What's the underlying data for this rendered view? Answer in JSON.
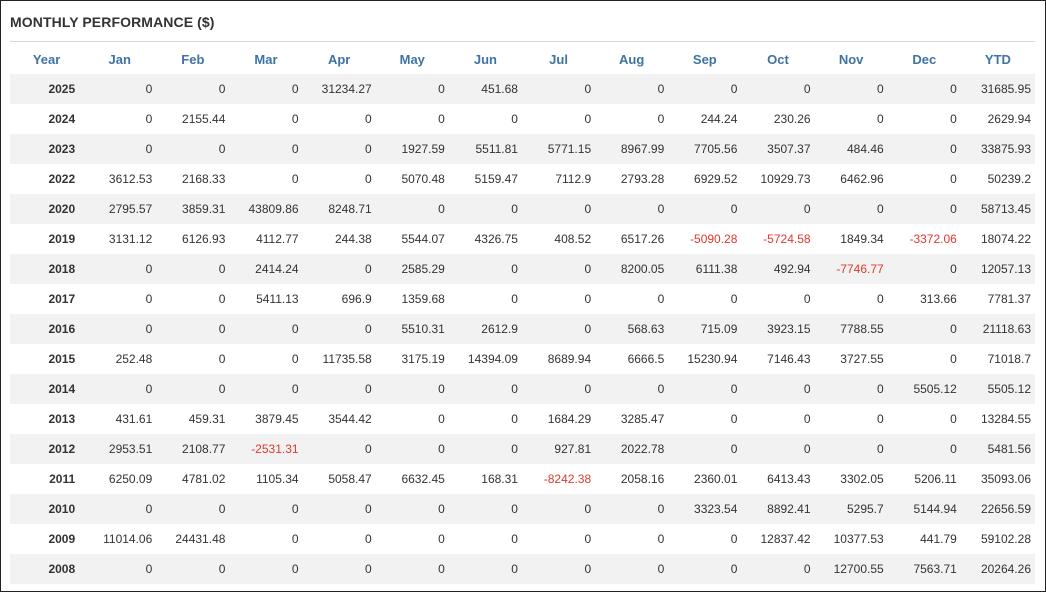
{
  "title": "MONTHLY PERFORMANCE ($)",
  "headers": [
    "Year",
    "Jan",
    "Feb",
    "Mar",
    "Apr",
    "May",
    "Jun",
    "Jul",
    "Aug",
    "Sep",
    "Oct",
    "Nov",
    "Dec",
    "YTD"
  ],
  "negative_color": "#e0392b",
  "header_color": "#3f73a6",
  "rows": [
    [
      "2025",
      "0",
      "0",
      "0",
      "31234.27",
      "0",
      "451.68",
      "0",
      "0",
      "0",
      "0",
      "0",
      "0",
      "31685.95"
    ],
    [
      "2024",
      "0",
      "2155.44",
      "0",
      "0",
      "0",
      "0",
      "0",
      "0",
      "244.24",
      "230.26",
      "0",
      "0",
      "2629.94"
    ],
    [
      "2023",
      "0",
      "0",
      "0",
      "0",
      "1927.59",
      "5511.81",
      "5771.15",
      "8967.99",
      "7705.56",
      "3507.37",
      "484.46",
      "0",
      "33875.93"
    ],
    [
      "2022",
      "3612.53",
      "2168.33",
      "0",
      "0",
      "5070.48",
      "5159.47",
      "7112.9",
      "2793.28",
      "6929.52",
      "10929.73",
      "6462.96",
      "0",
      "50239.2"
    ],
    [
      "2020",
      "2795.57",
      "3859.31",
      "43809.86",
      "8248.71",
      "0",
      "0",
      "0",
      "0",
      "0",
      "0",
      "0",
      "0",
      "58713.45"
    ],
    [
      "2019",
      "3131.12",
      "6126.93",
      "4112.77",
      "244.38",
      "5544.07",
      "4326.75",
      "408.52",
      "6517.26",
      "-5090.28",
      "-5724.58",
      "1849.34",
      "-3372.06",
      "18074.22"
    ],
    [
      "2018",
      "0",
      "0",
      "2414.24",
      "0",
      "2585.29",
      "0",
      "0",
      "8200.05",
      "6111.38",
      "492.94",
      "-7746.77",
      "0",
      "12057.13"
    ],
    [
      "2017",
      "0",
      "0",
      "5411.13",
      "696.9",
      "1359.68",
      "0",
      "0",
      "0",
      "0",
      "0",
      "0",
      "313.66",
      "7781.37"
    ],
    [
      "2016",
      "0",
      "0",
      "0",
      "0",
      "5510.31",
      "2612.9",
      "0",
      "568.63",
      "715.09",
      "3923.15",
      "7788.55",
      "0",
      "21118.63"
    ],
    [
      "2015",
      "252.48",
      "0",
      "0",
      "11735.58",
      "3175.19",
      "14394.09",
      "8689.94",
      "6666.5",
      "15230.94",
      "7146.43",
      "3727.55",
      "0",
      "71018.7"
    ],
    [
      "2014",
      "0",
      "0",
      "0",
      "0",
      "0",
      "0",
      "0",
      "0",
      "0",
      "0",
      "0",
      "5505.12",
      "5505.12"
    ],
    [
      "2013",
      "431.61",
      "459.31",
      "3879.45",
      "3544.42",
      "0",
      "0",
      "1684.29",
      "3285.47",
      "0",
      "0",
      "0",
      "0",
      "13284.55"
    ],
    [
      "2012",
      "2953.51",
      "2108.77",
      "-2531.31",
      "0",
      "0",
      "0",
      "927.81",
      "2022.78",
      "0",
      "0",
      "0",
      "0",
      "5481.56"
    ],
    [
      "2011",
      "6250.09",
      "4781.02",
      "1105.34",
      "5058.47",
      "6632.45",
      "168.31",
      "-8242.38",
      "2058.16",
      "2360.01",
      "6413.43",
      "3302.05",
      "5206.11",
      "35093.06"
    ],
    [
      "2010",
      "0",
      "0",
      "0",
      "0",
      "0",
      "0",
      "0",
      "0",
      "3323.54",
      "8892.41",
      "5295.7",
      "5144.94",
      "22656.59"
    ],
    [
      "2009",
      "11014.06",
      "24431.48",
      "0",
      "0",
      "0",
      "0",
      "0",
      "0",
      "0",
      "12837.42",
      "10377.53",
      "441.79",
      "59102.28"
    ],
    [
      "2008",
      "0",
      "0",
      "0",
      "0",
      "0",
      "0",
      "0",
      "0",
      "0",
      "0",
      "12700.55",
      "7563.71",
      "20264.26"
    ]
  ]
}
